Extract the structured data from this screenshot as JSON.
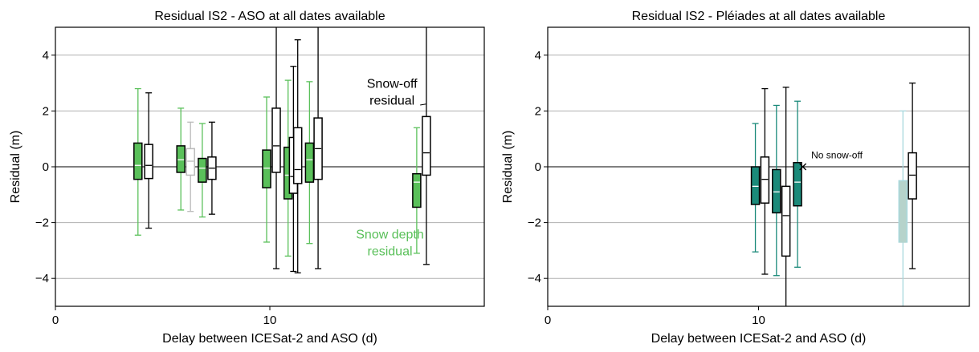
{
  "chart_data": [
    {
      "type": "box",
      "title": "Residual IS2 - ASO at all dates available",
      "xlabel": "Delay between ICESat-2 and ASO (d)",
      "ylabel": "Residual (m)",
      "xlim": [
        0,
        20
      ],
      "ylim": [
        -5,
        5
      ],
      "xticks": [
        0,
        10
      ],
      "yticks": [
        -4,
        -2,
        0,
        2,
        4
      ],
      "grid": "horizontal",
      "colors": {
        "snow_depth": "#5ac05a",
        "snow_off": "#ffffff",
        "edge": "#000000",
        "faded": "#bbbbbb"
      },
      "annotations": [
        {
          "text_lines": [
            "Snow-off",
            "residual"
          ],
          "color": "#000000",
          "ax": 17.4,
          "ay": 2.25,
          "tx": 15.7,
          "ty": 2.7
        },
        {
          "text_lines": [
            "Snow depth",
            "residual"
          ],
          "color": "#5ac05a",
          "ax": 14.6,
          "ay": -1.1,
          "tx": 15.6,
          "ty": -2.7
        }
      ],
      "series": [
        {
          "name": "",
          "kind": "snow_depth",
          "x": 3.85,
          "q1": -0.45,
          "median": 0.05,
          "q3": 0.85,
          "whisker_low": -2.45,
          "whisker_high": 2.8
        },
        {
          "name": "",
          "kind": "snow_off",
          "x": 4.35,
          "q1": -0.42,
          "median": 0.05,
          "q3": 0.8,
          "whisker_low": -2.2,
          "whisker_high": 2.65
        },
        {
          "name": "",
          "kind": "snow_depth",
          "x": 5.85,
          "q1": -0.2,
          "median": 0.25,
          "q3": 0.75,
          "whisker_low": -1.55,
          "whisker_high": 2.1
        },
        {
          "name": "",
          "kind": "faded",
          "x": 6.3,
          "q1": -0.3,
          "median": 0.2,
          "q3": 0.65,
          "whisker_low": -1.6,
          "whisker_high": 1.6
        },
        {
          "name": "",
          "kind": "snow_depth",
          "x": 6.85,
          "q1": -0.55,
          "median": -0.05,
          "q3": 0.3,
          "whisker_low": -1.8,
          "whisker_high": 1.55
        },
        {
          "name": "",
          "kind": "snow_off",
          "x": 7.3,
          "q1": -0.45,
          "median": -0.05,
          "q3": 0.35,
          "whisker_low": -1.7,
          "whisker_high": 1.6
        },
        {
          "name": "",
          "kind": "snow_depth",
          "x": 9.85,
          "q1": -0.75,
          "median": -0.05,
          "q3": 0.6,
          "whisker_low": -2.7,
          "whisker_high": 2.5
        },
        {
          "name": "",
          "kind": "snow_off",
          "x": 10.3,
          "q1": -0.2,
          "median": 0.75,
          "q3": 2.1,
          "whisker_low": -3.65,
          "whisker_high": 5
        },
        {
          "name": "",
          "kind": "snow_depth",
          "x": 10.85,
          "q1": -1.15,
          "median": -0.3,
          "q3": 0.7,
          "whisker_low": -3.2,
          "whisker_high": 3.1
        },
        {
          "name": "",
          "kind": "snow_off",
          "x": 11.1,
          "q1": -0.95,
          "median": -0.35,
          "q3": 1.05,
          "whisker_low": -3.75,
          "whisker_high": 3.6
        },
        {
          "name": "",
          "kind": "snow_off",
          "x": 11.3,
          "q1": -0.6,
          "median": -0.1,
          "q3": 1.4,
          "whisker_low": -3.8,
          "whisker_high": 4.55
        },
        {
          "name": "",
          "kind": "snow_depth",
          "x": 11.85,
          "q1": -0.55,
          "median": 0.25,
          "q3": 0.85,
          "whisker_low": -2.75,
          "whisker_high": 3.05
        },
        {
          "name": "",
          "kind": "snow_off",
          "x": 12.25,
          "q1": -0.45,
          "median": 0.65,
          "q3": 1.75,
          "whisker_low": -3.65,
          "whisker_high": 5
        },
        {
          "name": "",
          "kind": "snow_depth",
          "x": 16.85,
          "q1": -1.45,
          "median": -0.55,
          "q3": -0.25,
          "whisker_low": -3.1,
          "whisker_high": 1.4
        },
        {
          "name": "",
          "kind": "snow_off",
          "x": 17.3,
          "q1": -0.3,
          "median": 0.5,
          "q3": 1.8,
          "whisker_low": -3.5,
          "whisker_high": 5
        }
      ]
    },
    {
      "type": "box",
      "title": "Residual IS2 - Pléiades at all dates available",
      "xlabel": "Delay between ICESat-2 and ASO (d)",
      "ylabel": "Residual (m)",
      "xlim": [
        0,
        20
      ],
      "ylim": [
        -5,
        5
      ],
      "xticks": [
        0,
        10
      ],
      "yticks": [
        -4,
        -2,
        0,
        2,
        4
      ],
      "grid": "horizontal",
      "colors": {
        "snow_depth": "#1b8a7a",
        "snow_off": "#ffffff",
        "edge": "#000000",
        "faded_fill": "#b6d3cb",
        "faded_edge": "#a9d8dd"
      },
      "annotations": [
        {
          "text_lines": [
            "No snow-off"
          ],
          "color": "#000000",
          "marker": "x",
          "ax": 12.1,
          "ay": 0.0,
          "tx": 12.5,
          "ty": 0.3
        }
      ],
      "series": [
        {
          "name": "",
          "kind": "snow_depth",
          "x": 9.85,
          "q1": -1.35,
          "median": -0.7,
          "q3": 0.0,
          "whisker_low": -3.05,
          "whisker_high": 1.55
        },
        {
          "name": "",
          "kind": "snow_off",
          "x": 10.3,
          "q1": -1.3,
          "median": -0.45,
          "q3": 0.35,
          "whisker_low": -3.85,
          "whisker_high": 2.8
        },
        {
          "name": "",
          "kind": "snow_depth",
          "x": 10.85,
          "q1": -1.65,
          "median": -0.9,
          "q3": -0.1,
          "whisker_low": -3.9,
          "whisker_high": 2.2
        },
        {
          "name": "",
          "kind": "snow_off",
          "x": 11.3,
          "q1": -3.2,
          "median": -1.75,
          "q3": -0.7,
          "whisker_low": -5,
          "whisker_high": 2.85
        },
        {
          "name": "",
          "kind": "snow_depth",
          "x": 11.85,
          "q1": -1.4,
          "median": -0.55,
          "q3": 0.15,
          "whisker_low": -3.6,
          "whisker_high": 2.35
        },
        {
          "name": "",
          "kind": "faded",
          "x": 16.85,
          "q1": -2.7,
          "median": -2.7,
          "q3": -0.5,
          "whisker_low": -5,
          "whisker_high": 2.0
        },
        {
          "name": "",
          "kind": "snow_off",
          "x": 17.3,
          "q1": -1.15,
          "median": -0.3,
          "q3": 0.5,
          "whisker_low": -3.65,
          "whisker_high": 3.0
        }
      ]
    }
  ]
}
